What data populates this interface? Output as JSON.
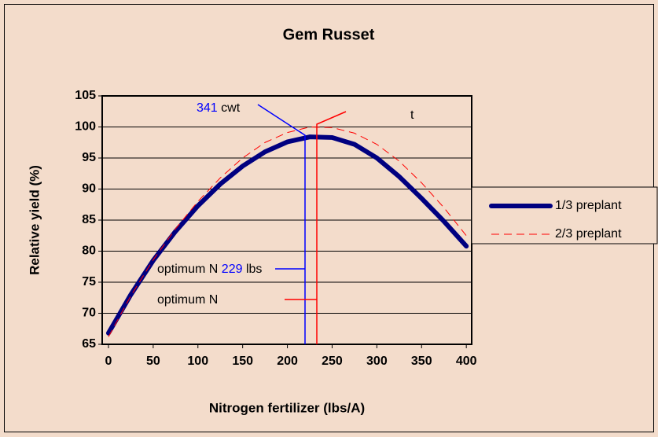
{
  "chart_data": {
    "type": "line",
    "title": "Gem Russet",
    "x_label": "Nitrogen fertilizer (lbs/A)",
    "y_label": "Relative yield (%)",
    "x": [
      0,
      25,
      50,
      75,
      100,
      125,
      150,
      175,
      200,
      225,
      250,
      275,
      300,
      325,
      350,
      375,
      400
    ],
    "series": [
      {
        "name": "1/3 preplant",
        "color": "#000080",
        "style": "solid",
        "values": [
          66.8,
          73,
          78.5,
          83.2,
          87.3,
          90.8,
          93.7,
          96.0,
          97.6,
          98.4,
          98.3,
          97.2,
          95.0,
          92.0,
          88.5,
          84.8,
          80.8
        ]
      },
      {
        "name": "2/3 preplant",
        "color": "#ff0000",
        "style": "dashed",
        "values": [
          66.2,
          72.8,
          78.6,
          83.6,
          88,
          91.8,
          95,
          97.5,
          99.1,
          100,
          99.9,
          99,
          97.2,
          94.5,
          91,
          87,
          82.5
        ]
      }
    ],
    "xlim": [
      -7,
      406
    ],
    "xticks": [
      0,
      50,
      100,
      150,
      200,
      250,
      300,
      350,
      400
    ],
    "ylim": [
      65,
      105
    ],
    "yticks": [
      65,
      70,
      75,
      80,
      85,
      90,
      95,
      100,
      105
    ],
    "grid": true,
    "legend": "right",
    "annotations": {
      "yield": [
        "341",
        " cwt"
      ],
      "optimum_blue": [
        "optimum N ",
        "229",
        " lbs"
      ],
      "optimum_red": "optimum N",
      "t": "t"
    }
  }
}
